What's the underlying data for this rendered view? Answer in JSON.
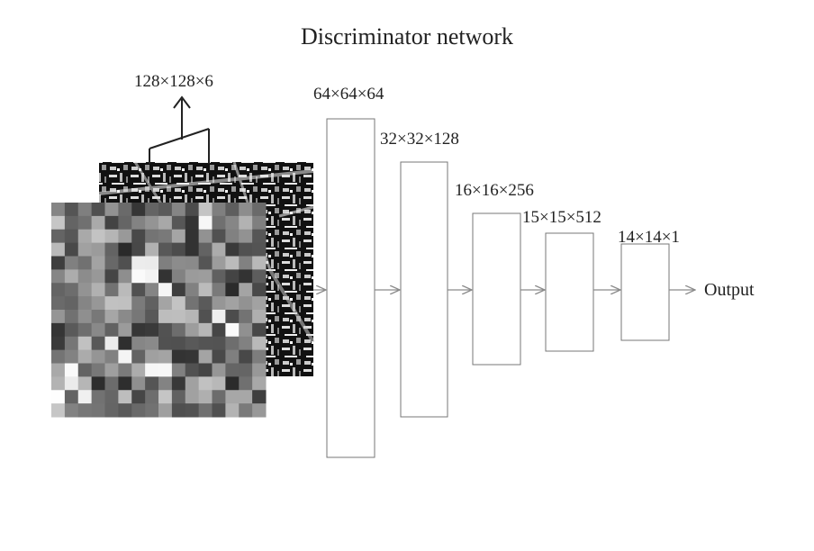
{
  "title": "Discriminator network",
  "input_label": "128×128×6",
  "layers": [
    {
      "label": "64×64×64"
    },
    {
      "label": "32×32×128"
    },
    {
      "label": "16×16×256"
    },
    {
      "label": "15×15×512"
    },
    {
      "label": "14×14×1"
    }
  ],
  "output_label": "Output",
  "colors": {
    "line": "#8a8a8a",
    "box_fill": "#ffffff",
    "text": "#222222"
  }
}
